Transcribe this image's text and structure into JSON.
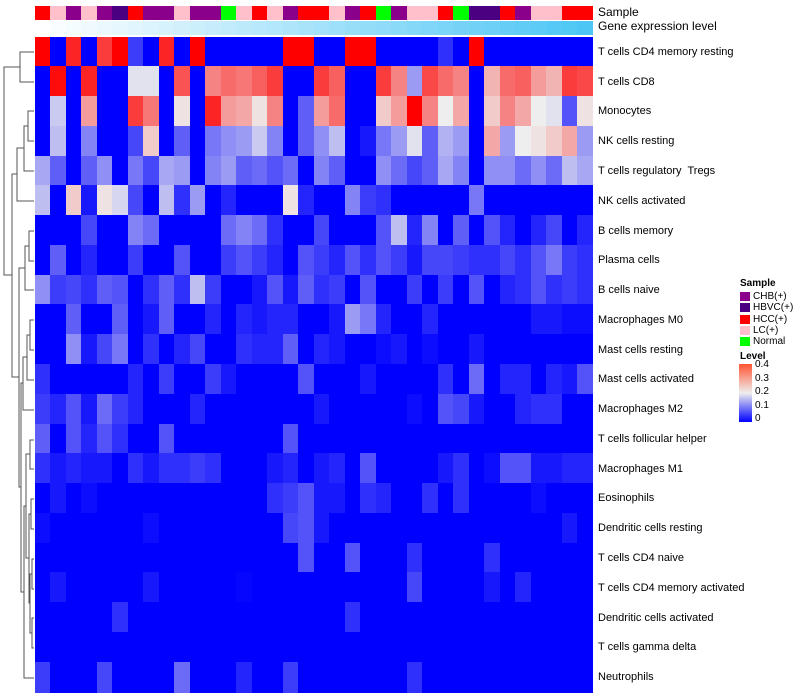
{
  "chart_data": {
    "type": "heatmap",
    "title": "",
    "annotation_labels": [
      "Sample",
      "Gene expression level"
    ],
    "samples": [
      "HCC(+)",
      "LC(+)",
      "CHB(+)",
      "LC(+)",
      "CHB(+)",
      "HBVC(+)",
      "HCC(+)",
      "CHB(+)",
      "CHB(+)",
      "LC(+)",
      "CHB(+)",
      "CHB(+)",
      "Normal",
      "LC(+)",
      "HCC(+)",
      "LC(+)",
      "CHB(+)",
      "HCC(+)",
      "HCC(+)",
      "LC(+)",
      "CHB(+)",
      "HCC(+)",
      "Normal",
      "CHB(+)",
      "LC(+)",
      "LC(+)",
      "HCC(+)",
      "Normal",
      "HBVC(+)",
      "HBVC(+)",
      "HCC(+)",
      "CHB(+)",
      "LC(+)",
      "LC(+)",
      "HCC(+)",
      "HCC(+)"
    ],
    "sample_colors": {
      "CHB(+)": "#8B008B",
      "HBVC(+)": "#4B0082",
      "HCC(+)": "#FF0000",
      "LC(+)": "#FFC0CB",
      "Normal": "#00FF00"
    },
    "gene_expression_gradient": [
      "#FFFFFF",
      "#4DC6F5"
    ],
    "rows": [
      "T cells CD4 memory resting",
      "T cells CD8",
      "Monocytes",
      "NK cells resting",
      "T cells regulatory  Tregs",
      "NK cells activated",
      "B cells memory",
      "Plasma cells",
      "B cells naive",
      "Macrophages M0",
      "Mast cells resting",
      "Mast cells activated",
      "Macrophages M2",
      "T cells follicular helper",
      "Macrophages M1",
      "Eosinophils",
      "Dendritic cells resting",
      "T cells CD4 naive",
      "T cells CD4 memory activated",
      "Dendritic cells activated",
      "T cells gamma delta",
      "Neutrophils"
    ],
    "values": [
      [
        0.4,
        0,
        0.37,
        0,
        0.35,
        0.4,
        0.05,
        0,
        0.37,
        0,
        0.4,
        0,
        0,
        0,
        0,
        0,
        0.4,
        0.4,
        0,
        0,
        0.4,
        0.4,
        0,
        0,
        0,
        0,
        0.04,
        0,
        0.4,
        0,
        0,
        0,
        0,
        0,
        0,
        0
      ],
      [
        0,
        0.39,
        0,
        0.37,
        0,
        0,
        0.19,
        0.19,
        0,
        0.33,
        0,
        0.29,
        0.31,
        0.3,
        0.32,
        0.35,
        0,
        0,
        0.35,
        0.32,
        0,
        0,
        0.35,
        0.29,
        0.13,
        0.34,
        0.31,
        0.29,
        0,
        0.25,
        0.31,
        0.32,
        0.27,
        0.25,
        0.35,
        0.34
      ],
      [
        0,
        0.17,
        0,
        0.27,
        0,
        0,
        0.35,
        0.3,
        0,
        0.21,
        0,
        0.37,
        0.27,
        0.26,
        0.21,
        0.29,
        0,
        0.08,
        0.27,
        0.31,
        0,
        0,
        0.23,
        0.27,
        0.4,
        0.29,
        0.2,
        0.26,
        0,
        0.23,
        0.29,
        0.26,
        0.2,
        0.19,
        0.07,
        0.21
      ],
      [
        0,
        0.16,
        0,
        0.11,
        0,
        0,
        0.06,
        0.23,
        0,
        0.08,
        0,
        0.1,
        0.12,
        0.13,
        0.17,
        0.11,
        0,
        0.08,
        0.12,
        0.16,
        0,
        0.02,
        0.1,
        0.13,
        0.19,
        0.08,
        0.15,
        0.13,
        0,
        0.26,
        0.13,
        0.2,
        0.21,
        0.23,
        0.26,
        0.13
      ],
      [
        0.14,
        0.08,
        0,
        0.08,
        0.12,
        0,
        0.1,
        0.06,
        0.14,
        0.13,
        0,
        0.11,
        0.13,
        0.08,
        0.09,
        0.07,
        0.09,
        0,
        0.11,
        0.08,
        0,
        0,
        0.12,
        0.09,
        0.06,
        0.08,
        0.14,
        0.11,
        0,
        0.12,
        0.12,
        0.09,
        0.12,
        0.09,
        0.16,
        0.14
      ],
      [
        0.16,
        0,
        0.23,
        0.02,
        0.21,
        0.18,
        0.06,
        0,
        0.16,
        0.04,
        0.13,
        0,
        0.03,
        0,
        0,
        0,
        0.21,
        0.03,
        0,
        0,
        0.11,
        0.05,
        0.04,
        0,
        0,
        0,
        0,
        0,
        0.1,
        0,
        0,
        0,
        0,
        0,
        0,
        0
      ],
      [
        0,
        0,
        0,
        0.06,
        0,
        0,
        0.11,
        0.09,
        0,
        0,
        0,
        0,
        0.09,
        0.11,
        0.09,
        0.04,
        0,
        0,
        0.06,
        0,
        0,
        0,
        0.07,
        0.16,
        0.03,
        0.11,
        0,
        0.08,
        0,
        0.07,
        0.03,
        0,
        0.03,
        0.06,
        0,
        0.03
      ],
      [
        0,
        0.08,
        0,
        0.03,
        0,
        0,
        0.05,
        0,
        0,
        0.07,
        0,
        0,
        0.05,
        0.07,
        0.05,
        0.03,
        0,
        0.07,
        0.05,
        0.03,
        0.07,
        0.04,
        0.07,
        0.05,
        0.02,
        0.06,
        0.06,
        0.05,
        0.04,
        0.04,
        0.06,
        0.04,
        0.07,
        0.1,
        0.05,
        0.04
      ],
      [
        0.12,
        0.05,
        0.06,
        0.04,
        0.08,
        0.07,
        0,
        0.04,
        0.08,
        0.04,
        0.16,
        0.05,
        0,
        0,
        0.02,
        0.07,
        0.02,
        0.08,
        0.04,
        0.05,
        0,
        0.07,
        0,
        0,
        0.05,
        0,
        0.05,
        0,
        0.07,
        0,
        0.03,
        0.04,
        0.07,
        0.04,
        0.05,
        0.04
      ],
      [
        0,
        0,
        0.08,
        0,
        0,
        0.08,
        0,
        0.02,
        0.08,
        0,
        0,
        0.03,
        0,
        0.03,
        0.02,
        0.03,
        0.03,
        0,
        0,
        0.02,
        0.13,
        0.1,
        0.03,
        0,
        0,
        0.03,
        0,
        0,
        0,
        0,
        0,
        0,
        0.02,
        0.02,
        0.01,
        0.01
      ],
      [
        0,
        0,
        0.12,
        0.02,
        0.06,
        0.1,
        0,
        0.04,
        0,
        0.03,
        0.06,
        0,
        0,
        0.04,
        0.03,
        0.03,
        0.08,
        0,
        0.03,
        0.02,
        0,
        0,
        0.01,
        0.02,
        0,
        0.01,
        0,
        0,
        0.02,
        0,
        0,
        0,
        0,
        0,
        0,
        0
      ],
      [
        0.04,
        0,
        0,
        0,
        0,
        0,
        0.03,
        0,
        0.05,
        0,
        0,
        0.05,
        0.02,
        0,
        0,
        0,
        0,
        0.07,
        0,
        0,
        0,
        0.02,
        0,
        0,
        0,
        0,
        0.04,
        0,
        0.09,
        0,
        0.03,
        0.03,
        0,
        0.03,
        0.02,
        0.07
      ],
      [
        0.05,
        0.03,
        0.07,
        0.02,
        0.09,
        0.05,
        0.03,
        0,
        0,
        0,
        0.03,
        0,
        0,
        0,
        0,
        0,
        0,
        0,
        0.02,
        0,
        0,
        0,
        0,
        0,
        0.01,
        0,
        0.07,
        0.06,
        0.02,
        0,
        0,
        0.03,
        0.04,
        0.04,
        0,
        0
      ],
      [
        0.08,
        0,
        0.07,
        0.03,
        0.07,
        0.04,
        0,
        0,
        0.07,
        0,
        0,
        0,
        0,
        0,
        0,
        0,
        0.07,
        0,
        0,
        0,
        0,
        0,
        0,
        0,
        0,
        0,
        0,
        0,
        0,
        0,
        0,
        0,
        0,
        0,
        0,
        0
      ],
      [
        0.04,
        0.02,
        0.03,
        0.02,
        0.02,
        0,
        0.04,
        0.02,
        0.04,
        0.04,
        0.05,
        0.04,
        0,
        0,
        0,
        0.02,
        0.03,
        0,
        0.02,
        0.03,
        0,
        0.07,
        0,
        0,
        0,
        0,
        0.02,
        0.04,
        0,
        0.01,
        0.07,
        0.07,
        0.02,
        0.02,
        0.03,
        0.03
      ],
      [
        0,
        0.02,
        0,
        0.01,
        0,
        0,
        0,
        0,
        0,
        0,
        0,
        0,
        0,
        0,
        0,
        0.04,
        0.05,
        0.07,
        0.02,
        0.02,
        0,
        0.04,
        0.03,
        0,
        0,
        0.04,
        0,
        0.04,
        0,
        0,
        0,
        0,
        0.01,
        0,
        0,
        0
      ],
      [
        0.01,
        0,
        0,
        0,
        0,
        0,
        0,
        0.01,
        0,
        0,
        0,
        0,
        0,
        0,
        0,
        0,
        0.06,
        0.07,
        0.02,
        0,
        0,
        0,
        0,
        0,
        0,
        0,
        0,
        0,
        0,
        0,
        0,
        0,
        0,
        0,
        0.02,
        0
      ],
      [
        0,
        0,
        0,
        0,
        0,
        0,
        0,
        0,
        0,
        0,
        0,
        0,
        0,
        0,
        0,
        0,
        0,
        0.07,
        0,
        0,
        0.07,
        0,
        0,
        0,
        0.04,
        0,
        0,
        0,
        0,
        0.04,
        0,
        0,
        0,
        0,
        0,
        0
      ],
      [
        0,
        0.02,
        0,
        0,
        0,
        0,
        0,
        0.02,
        0,
        0,
        0,
        0,
        0,
        0.005,
        0,
        0,
        0,
        0,
        0,
        0,
        0,
        0,
        0,
        0,
        0.06,
        0,
        0,
        0,
        0,
        0.02,
        0,
        0.03,
        0,
        0,
        0,
        0
      ],
      [
        0,
        0,
        0,
        0,
        0,
        0.04,
        0,
        0,
        0,
        0,
        0,
        0,
        0,
        0,
        0,
        0,
        0,
        0,
        0,
        0,
        0.04,
        0,
        0,
        0,
        0,
        0,
        0,
        0,
        0,
        0,
        0,
        0,
        0,
        0,
        0,
        0
      ],
      [
        0,
        0,
        0,
        0,
        0,
        0,
        0,
        0,
        0,
        0,
        0,
        0,
        0,
        0,
        0,
        0,
        0,
        0,
        0,
        0,
        0,
        0,
        0,
        0,
        0,
        0,
        0,
        0,
        0,
        0,
        0,
        0,
        0,
        0,
        0,
        0
      ],
      [
        0.05,
        0,
        0,
        0,
        0.06,
        0,
        0,
        0,
        0,
        0.09,
        0,
        0,
        0,
        0.03,
        0,
        0,
        0.05,
        0,
        0,
        0,
        0,
        0,
        0,
        0,
        0.04,
        0,
        0,
        0,
        0,
        0,
        0,
        0,
        0,
        0,
        0,
        0
      ]
    ],
    "color_scale": {
      "min": 0,
      "mid": 0.2,
      "max": 0.4,
      "colors": [
        "#0000FF",
        "#EEEEEE",
        "#FF0000"
      ]
    },
    "legend": {
      "sample_title": "Sample",
      "sample_entries": [
        "CHB(+)",
        "HBVC(+)",
        "HCC(+)",
        "LC(+)",
        "Normal"
      ],
      "level_title": "Level",
      "level_ticks": [
        "0.4",
        "0.3",
        "0.2",
        "0.1",
        "0"
      ],
      "placement": "right"
    }
  }
}
